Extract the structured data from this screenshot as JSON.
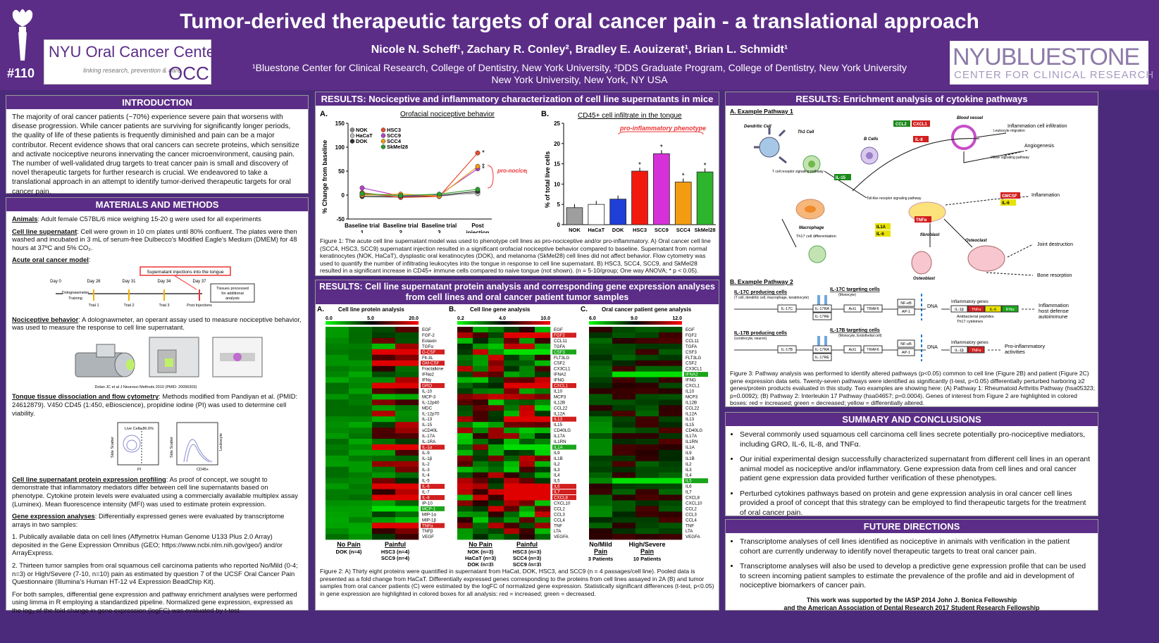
{
  "header": {
    "title": "Tumor-derived therapeutic targets of oral cancer pain - a translational approach",
    "authors": "Nicole N. Scheff¹, Zachary R. Conley², Bradley E. Aouizerat¹, Brian L. Schmidt¹",
    "affil1": "¹Bluestone Center for Clinical Research, College of Dentistry, New York University, ²DDS Graduate Program, College of Dentistry, New York University",
    "affil2": "New York University, New York, NY USA",
    "poster_num": "#110",
    "logo_left_1": "NYU Oral Cancer Center",
    "logo_left_2": "linking research, prevention & care",
    "logo_left_mark": "OCC",
    "logo_right_1": "NYUBLUESTONE",
    "logo_right_2": "CENTER FOR CLINICAL RESEARCH"
  },
  "intro": {
    "heading": "INTRODUCTION",
    "text": "The majority of oral cancer patients (~70%) experience severe pain that worsens with disease progression. While cancer patients are surviving for significantly longer periods, the quality of life of these patients is frequently diminished and pain can be a major contributor. Recent evidence shows that oral cancers can secrete proteins, which sensitize and activate nociceptive neurons innervating the cancer microenvironment, causing pain. The number of well-validated drug targets to treat cancer pain is small and discovery of novel therapeutic targets for further research is crucial. We endeavored to take a translational approach in an attempt to identify tumor-derived therapeutic targets for oral cancer pain."
  },
  "methods": {
    "heading": "MATERIALS AND METHODS",
    "animals_label": "Animals",
    "animals": ": Adult female C57BL/6 mice weighing 15-20 g were used for all experiments",
    "csn_label": "Cell line supernatant",
    "csn": ": Cell were grown in 10 cm plates until 80% confluent. The plates were then washed and incubated in 3 mL of serum-free Dulbecco's Modified Eagle's Medium (DMEM) for 48 hours at 37ºC and 5% CO₂.",
    "acute_label": "Acute oral cancer model",
    "timeline_banner": "Supernatant injections into the tongue",
    "timeline_days": [
      "Day 0",
      "Day 28",
      "Day 31",
      "Day 34",
      "Day 37"
    ],
    "timeline_sub": [
      "Dolognawmeter Training",
      "Trial 1",
      "Trial 2",
      "Trial 3",
      "Post Injections"
    ],
    "timeline_box": "Tissues processed for additional analysis",
    "noci_label": "Nociceptive behavior",
    "noci": ": A dolognawmeter, an operant assay used to measure nociceptive behavior, was used to measure the response to cell line supernatant.",
    "noci_credit": "Dolan JC et al J Neurosci Methods 2010 (PMID: 20096303)",
    "flow_label": "Tongue tissue dissociation and flow cytometry",
    "flow": ": Methods modified from Pandiyan et al. (PMID: 24612879). V450 CD45 (1:450, eBioscience), propidine iodine (PI) was used to determine cell viability.",
    "flow_live": "Live Cells 86.6%",
    "flow_axis1": "Side Scatter",
    "flow_axis2": "Side Scatter",
    "flow_x1": "PI",
    "flow_x2": "CD45+",
    "flow_y3": "Leukocyte",
    "prot_label": "Cell line supernatant protein expression profiling",
    "prot": ": As proof of concept, we sought to demonstrate that inflammatory mediators differ between cell line supernatants based on phenotype. Cytokine protein levels were evaluated using a commercially available multiplex assay (Luminex). Mean fluorescence intensity (MFI) was used to estimate protein expression.",
    "gene_label": "Gene expression analyses",
    "gene": ": Differentially expressed genes were evaluated by transcriptome arrays in two samples:",
    "gene1": "1. Publically available data on cell lines (Affymetrix Human Genome U133 Plus 2.0 Array) deposited in the Gene Expression Omnibus (GEO; https://www.ncbi.nlm.nih.gov/geo/) and/or ArrayExpress.",
    "gene2": "2. Thirteen tumor samples from oral squamous cell carcinoma patients who reported No/Mild (0-4; n=3) or High/Severe (7-10, n=10) pain as estimated by question 7 of the UCSF Oral Cancer Pain Questionnaire (Illumina's Human HT-12 v4 Expression BeadChip Kit).",
    "gene3": "For both samples, differential gene expression and pathway enrichment analyses were performed using limma in R employing a standardized pipeline. Normalized gene expression, expressed as the log₂ of the fold change in gene expression (logFC) was evaluated by t-test."
  },
  "results1": {
    "heading": "RESULTS: Nociceptive and inflammatory characterization of cell line supernatants in mice",
    "a_label": "A.",
    "a_title": "Orofacial nociceptive behavior",
    "a_ylabel": "% Change from baseline",
    "b_label": "B.",
    "b_title": "CD45+ cell infiltrate in the tongue",
    "b_ylabel": "% of total live cells",
    "b_annot": "pro-inflammatory phenotype",
    "a_annot": "pro-nociceptive phenotype",
    "caption": "Figure 1: The acute cell line supernatant model was used to phenotype cell lines as pro-nociceptive and/or pro-inflammatory. A) Oral cancer cell line (SCC4, HSC3, SCC9) supernatant injection resulted in a significant orofacial nociceptive behavior compared to baseline. Supernatant from normal keratinocytes (NOK, HaCaT), dysplastic oral keratinocytes (DOK), and melanoma (SkMel28) cell lines did not affect behavior. Flow cytometry was used to quantify the number of infiltrating leukocytes into the tongue in response to cell line supernatant. B) HSC3, SCC4, SCC9, and SkMel28 resulted in a significant increase in CD45+ immune cells compared to naive tongue (not shown). (n = 5-10/group; One way ANOVA; * p < 0.05)."
  },
  "results2": {
    "heading": "RESULTS: Cell line supernatant protein analysis and corresponding gene expression analyses from cell lines and oral cancer patient tumor samples",
    "a_label": "A.",
    "a_title": "Cell line protein analysis",
    "a_scale": [
      "0.0",
      "5.0",
      "20.0"
    ],
    "b_label": "B.",
    "b_title": "Cell line gene analysis",
    "b_scale": [
      "0.2",
      "4.0",
      "10.0"
    ],
    "c_label": "C.",
    "c_title": "Oral cancer patient gene analysis",
    "c_scale": [
      "6.0",
      "9.0",
      "12.0"
    ],
    "a_genes": [
      "EGF",
      "FGF-2",
      "Eotaxin",
      "TGFα",
      "G-CSF",
      "Flt-3L",
      "GM-CSF",
      "Fractalkine",
      "IFNα2",
      "IFNγ",
      "GRO",
      "IL-10",
      "MCP-3",
      "IL-12p40",
      "MDC",
      "IL-12p70",
      "IL-13",
      "IL-15",
      "sCD40L",
      "IL-17A",
      "IL-1RA",
      "IL-1α",
      "IL-9",
      "IL-1β",
      "IL-2",
      "IL-3",
      "IL-4",
      "IL-5",
      "IL-6",
      "IL-7",
      "IL-8",
      "IP-10",
      "MCP-1",
      "MIP-1α",
      "MIP-1β",
      "TNFα",
      "TNFβ",
      "VEGF"
    ],
    "b_genes": [
      "EGF",
      "FGF2",
      "CCL11",
      "TGFA",
      "CSF3",
      "FLT3LG",
      "CSF2",
      "CX3CL1",
      "IFNA2",
      "IFNG",
      "CXCL1",
      "IL10",
      "MCP3",
      "IL12B",
      "CCL22",
      "IL12A",
      "IL13",
      "IL15",
      "CD40LG",
      "IL17A",
      "IL1RN",
      "IL1A",
      "IL9",
      "IL1B",
      "IL2",
      "IL3",
      "IL4",
      "IL5",
      "IL6",
      "IL7",
      "CXCL8",
      "CXCL10",
      "CCL2",
      "CCL3",
      "CCL4",
      "TNF",
      "LTA",
      "VEGFA"
    ],
    "c_genes": [
      "EGF",
      "FGF2",
      "CCL11",
      "TGFA",
      "CSF3",
      "FLT3LG",
      "CSF2",
      "CX3CL1",
      "IFNA2",
      "IFNG",
      "CXCL1",
      "IL10",
      "MCP3",
      "IL12B",
      "CCL22",
      "IL12A",
      "IL13",
      "IL15",
      "CD40LG",
      "IL17A",
      "IL1RN",
      "IL1A",
      "IL9",
      "IL1B",
      "IL2",
      "IL3",
      "IL4",
      "IL5",
      "IL6",
      "IL7",
      "CXCL8",
      "CXCL10",
      "CCL2",
      "CCL3",
      "CCL4",
      "TNF",
      "LTA",
      "VEGFA"
    ],
    "a_groups": [
      {
        "name": "No Pain",
        "sub": "DOK (n=4)"
      },
      {
        "name": "Painful",
        "sub": "HSC3 (n=4)\nSCC9 (n=4)"
      }
    ],
    "b_groups": [
      {
        "name": "No Pain",
        "sub": "NOK (n=3)\nHaCaT (n=3)\nDOK (n=3)"
      },
      {
        "name": "Painful",
        "sub": "HSC3 (n=3)\nSCC4 (n=3)\nSCC9 (n=3)"
      }
    ],
    "c_groups": [
      {
        "name": "No/Mild Pain",
        "sub": "3 Patients"
      },
      {
        "name": "High/Severe Pain",
        "sub": "10 Patients"
      }
    ],
    "caption": "Figure 2: A) Thirty eight proteins were quantified in supernatant from HaCat, DOK, HSC3, and SCC9 (n = 4 passages/cell line). Pooled data is presented as a fold change from HaCaT. Differentially expressed genes corresponding to the proteins from cell lines assayed in 2A (B) and tumor samples from oral cancer patients (C) were estimated by the logFC of normalized gene expression. Statistically significant differences (t-test, p<0.05) in gene expression are highlighted in colored boxes for all analysis: red = increased; green = decreased."
  },
  "results3": {
    "heading": "RESULTS: Enrichment analysis of cytokine pathways",
    "a_label": "A. Example Pathway 1",
    "b_label": "B. Example Pathway 2",
    "p1_labels": [
      "Dendritic Cell",
      "Th1 Cell",
      "B Cells",
      "Blood vessel",
      "Inflammation cell infiltration",
      "Angiogenesis",
      "Inflammation",
      "Macrophage",
      "fibroblast",
      "Th17 cell differentiation",
      "Osteoclast",
      "Osteoblast",
      "Joint destruction",
      "Bone resorption",
      "T cell receptor signaling pathway",
      "Toll-like receptor signaling pathway",
      "Leukocyte migration",
      "VEGF signaling pathway"
    ],
    "p1_tags": [
      "CCL2",
      "CXCL1",
      "IL-8",
      "IL-15",
      "TNFα",
      "IL1A",
      "IL-6",
      "GMCSF",
      "IL-6"
    ],
    "p2_rows": [
      {
        "producing": "IL-17C producing cells",
        "producing_sub": "(T cell, dendritic cell, macrophage, keratinocyte)",
        "target": "IL-17C targeting cells",
        "target_sub": "(Monocyte)",
        "ligand": "IL-17C",
        "genes_label": "Inflammatory genes",
        "out": "Inflammation host defense autoimmune",
        "sub_out": "Antibacterial peptides Th17 cytokines"
      },
      {
        "producing": "IL-17B producing cells",
        "producing_sub": "(condrocyte, neuron)",
        "target": "IL-17B targeting cells",
        "target_sub": "(Monocyte, Endothelial cell)",
        "ligand": "IL-17B",
        "genes_label": "Inflammatory genes",
        "out": "Pro-inflammatory activities",
        "sub_out": ""
      }
    ],
    "p2_nodes": [
      "IL-17RA",
      "IL-17RE",
      "Act1",
      "TRAF6",
      "NF-κB",
      "AP-1",
      "DNA",
      "IL-1β",
      "TNFα",
      "IL-6",
      "IFNα"
    ],
    "caption": "Figure 3: Pathway analysis was performed to identify altered pathways (p<0.05) common to cell line (Figure 2B) and patient (Figure 2C) gene expression data sets. Twenty-seven pathways were identified as significantly (t-test, p<0.05) differentially perturbed harboring ≥2 genes/protein products evaluated in this study. Two examples are showing here: (A) Pathway 1: Rheumatoid Arthritis Pathway (hsa05323; p=0.0092); (B) Pathway 2: Interleukin 17 Pathway (hsa04657; p=0.0004). Genes of interest from Figure 2 are highlighted in colored boxes: red = increased; green = decreased; yellow = differentially altered."
  },
  "summary": {
    "heading": "SUMMARY AND CONCLUSIONS",
    "items": [
      "Several commonly used squamous cell carcinoma cell lines secrete potentially pro-nociceptive mediators, including GRO, IL-6, IL-8, and TNFα.",
      "Our initial experimental design successfully characterized supernatant from different cell lines in an operant animal model as nociceptive and/or inflammatory. Gene expression data from cell lines and oral cancer patient gene expression data provided further verification of these phenotypes.",
      "Perturbed cytokines pathways based on protein and gene expression analysis in oral cancer cell lines provided a proof of concept that this strategy can be employed to find therapeutic targets for the treatment of oral cancer pain."
    ]
  },
  "future": {
    "heading": "FUTURE DIRECTIONS",
    "items": [
      "Transcriptome analyses of cell lines identified as nociceptive in animals with verification in the patient cohort are currently underway to identify novel therapeutic targets to treat oral cancer pain.",
      "Transcriptome analyses will also be used to develop a predictive gene expression profile that can be used to screen incoming patient samples to estimate the prevalence of the profile and aid in development of nociceptive biomarkers of cancer pain."
    ],
    "funding1": "This work was supported by the IASP 2014 John J. Bonica Fellowship",
    "funding2": "and the American Association of Dental Research 2017 Student Research Fellowship"
  },
  "chart_data": [
    {
      "type": "line",
      "title": "Orofacial nociceptive behavior",
      "xlabel": "",
      "ylabel": "% Change from baseline",
      "categories": [
        "Baseline trial 1",
        "Baseline trial 2",
        "Baseline trial 3",
        "Post injection"
      ],
      "ylim": [
        -50,
        150
      ],
      "yticks": [
        -50,
        0,
        50,
        100,
        150
      ],
      "series": [
        {
          "name": "NOK",
          "color": "#888888",
          "values": [
            2,
            -3,
            -2,
            5
          ]
        },
        {
          "name": "HaCaT",
          "color": "#bbbbbb",
          "values": [
            -2,
            -2,
            0,
            3
          ]
        },
        {
          "name": "DOK",
          "color": "#333333",
          "values": [
            -3,
            -4,
            -1,
            8
          ]
        },
        {
          "name": "HSC3",
          "color": "#e84c2f",
          "values": [
            5,
            -5,
            -3,
            88
          ]
        },
        {
          "name": "SCC9",
          "color": "#b044c9",
          "values": [
            15,
            -2,
            0,
            55
          ]
        },
        {
          "name": "SCC4",
          "color": "#f39c12",
          "values": [
            0,
            2,
            -2,
            60
          ]
        },
        {
          "name": "SkMel28",
          "color": "#2ca02c",
          "values": [
            3,
            -1,
            2,
            12
          ]
        }
      ],
      "significant": [
        "HSC3",
        "SCC4",
        "SCC9"
      ]
    },
    {
      "type": "bar",
      "title": "CD45+ cell infiltrate in the tongue",
      "ylabel": "% of total live cells",
      "categories": [
        "NOK",
        "HaCaT",
        "DOK",
        "HSC3",
        "SCC9",
        "SCC4",
        "SkMel28"
      ],
      "values": [
        4.2,
        5,
        6.3,
        13.2,
        17.5,
        10.5,
        13
      ],
      "colors": [
        "#9e9e9e",
        "#ffffff",
        "#1f3fd6",
        "#f21a0f",
        "#d631d9",
        "#f39c12",
        "#2db52d"
      ],
      "ylim": [
        0,
        25
      ],
      "yticks": [
        0,
        5,
        10,
        15,
        20,
        25
      ],
      "significant": [
        "HSC3",
        "SCC9",
        "SCC4",
        "SkMel28"
      ]
    }
  ]
}
